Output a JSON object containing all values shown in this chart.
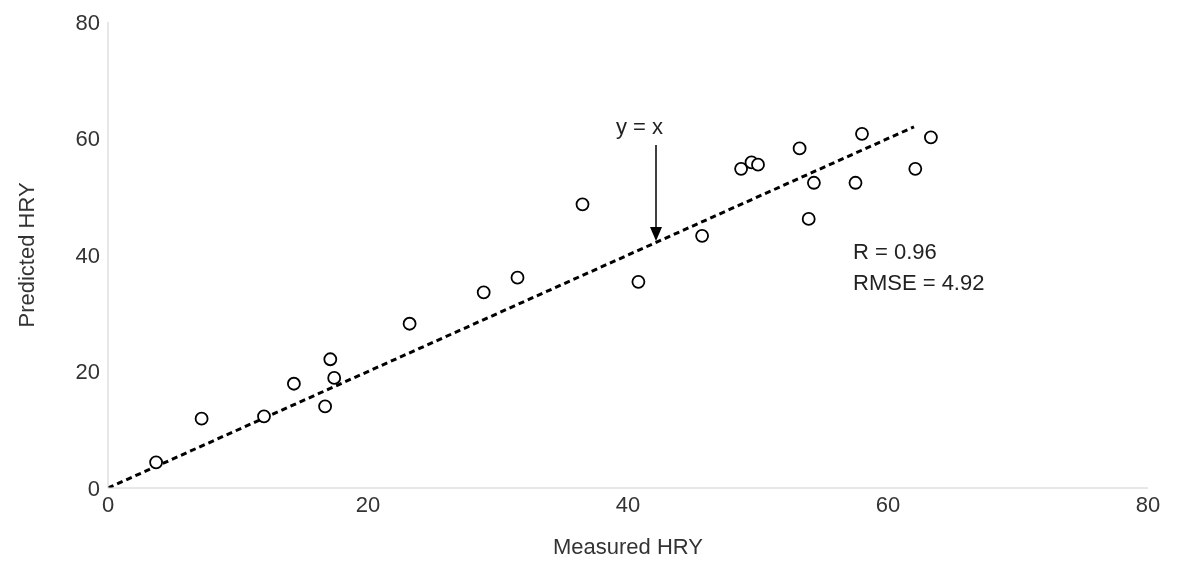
{
  "chart_data": {
    "type": "scatter",
    "xlabel": "Measured HRY",
    "ylabel": "Predicted HRY",
    "xlim": [
      0,
      80
    ],
    "ylim": [
      0,
      80
    ],
    "xticks": [
      0,
      20,
      40,
      60,
      80
    ],
    "yticks": [
      0,
      20,
      40,
      60,
      80
    ],
    "series": [
      {
        "type": "scatter",
        "color": "#000000",
        "marker": "circle",
        "x": [
          3.7,
          7.2,
          12.0,
          14.3,
          16.7,
          17.1,
          17.4,
          23.2,
          28.9,
          31.5,
          36.5,
          40.8,
          45.7,
          48.7,
          49.5,
          50.0,
          53.2,
          54.3,
          53.9,
          57.5,
          58.0,
          62.1,
          63.3
        ],
        "values": [
          4.4,
          11.9,
          12.3,
          17.9,
          14.0,
          22.1,
          18.9,
          28.2,
          33.6,
          36.1,
          48.7,
          35.4,
          43.3,
          54.8,
          55.9,
          55.5,
          58.3,
          52.4,
          46.2,
          52.4,
          60.8,
          54.8,
          60.2
        ]
      },
      {
        "type": "line",
        "color": "#000000",
        "marker": "none",
        "line_style": "dashed",
        "x": [
          0,
          62
        ],
        "values": [
          0,
          62
        ]
      }
    ],
    "annotations": [
      "y = x",
      "R = 0.96",
      "RMSE = 4.92"
    ]
  }
}
